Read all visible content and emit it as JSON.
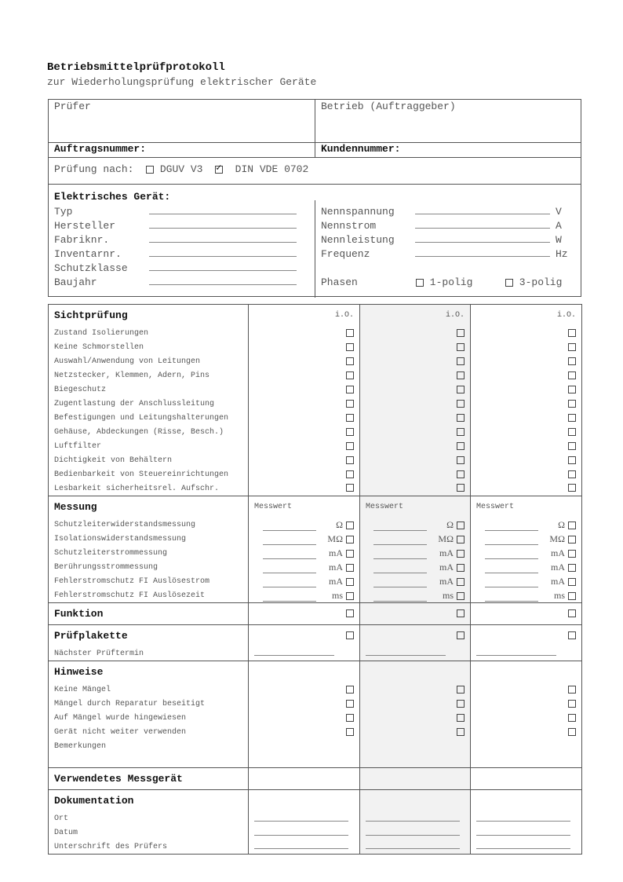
{
  "title": "Betriebsmittelprüfprotokoll",
  "subtitle": "zur Wiederholungsprüfung elektrischer Geräte",
  "header": {
    "pruefer": "Prüfer",
    "betrieb": "Betrieb (Auftraggeber)",
    "auftragsnummer": "Auftragsnummer:",
    "kundennummer": "Kundennummer:"
  },
  "pruefung": {
    "label": "Prüfung nach:",
    "options": [
      {
        "label": "DGUV V3",
        "checked": false
      },
      {
        "label": "DIN VDE 0702",
        "checked": true
      }
    ]
  },
  "geraet": {
    "heading": "Elektrisches Gerät:",
    "left": [
      "Typ",
      "Hersteller",
      "Fabriknr.",
      "Inventarnr.",
      "Schutzklasse",
      "Baujahr"
    ],
    "right": [
      {
        "label": "Nennspannung",
        "unit": "V"
      },
      {
        "label": "Nennstrom",
        "unit": "A"
      },
      {
        "label": "Nennleistung",
        "unit": "W"
      },
      {
        "label": "Frequenz",
        "unit": "Hz"
      }
    ],
    "phasen": {
      "label": "Phasen",
      "options": [
        "1-polig",
        "3-polig"
      ]
    }
  },
  "sections": {
    "sicht": {
      "title": "Sichtprüfung",
      "col_label": "i.O.",
      "items": [
        "Zustand Isolierungen",
        "Keine Schmorstellen",
        "Auswahl/Anwendung von Leitungen",
        "Netzstecker, Klemmen, Adern, Pins",
        "Biegeschutz",
        "Zugentlastung der Anschlussleitung",
        "Befestigungen und Leitungshalterungen",
        "Gehäuse, Abdeckungen (Risse, Besch.)",
        "Luftfilter",
        "Dichtigkeit von Behältern",
        "Bedienbarkeit von Steuereinrichtungen",
        "Lesbarkeit sicherheitsrel.  Aufschr."
      ]
    },
    "messung": {
      "title": "Messung",
      "col_label": "Messwert",
      "items": [
        {
          "label": "Schutzleiterwiderstandsmessung",
          "unit": "Ω"
        },
        {
          "label": "Isolationswiderstandsmessung",
          "unit": "MΩ"
        },
        {
          "label": "Schutzleiterstrommessung",
          "unit": "mA"
        },
        {
          "label": "Berührungsstrommessung",
          "unit": "mA"
        },
        {
          "label": "Fehlerstromschutz FI Auslösestrom",
          "unit": "mA"
        },
        {
          "label": "Fehlerstromschutz FI Auslösezeit",
          "unit": "ms"
        }
      ]
    },
    "funktion": {
      "title": "Funktion"
    },
    "plakette": {
      "title": "Prüfplakette",
      "item": "Nächster Prüftermin"
    },
    "hinweise": {
      "title": "Hinweise",
      "items": [
        "Keine Mängel",
        "Mängel durch Reparatur beseitigt",
        "Auf Mängel wurde hingewiesen",
        "Gerät nicht weiter verwenden"
      ],
      "remark": "Bemerkungen"
    },
    "messgeraet": {
      "title": "Verwendetes Messgerät"
    },
    "doku": {
      "title": "Dokumentation",
      "items": [
        "Ort",
        "Datum",
        "Unterschrift des Prüfers"
      ]
    }
  }
}
